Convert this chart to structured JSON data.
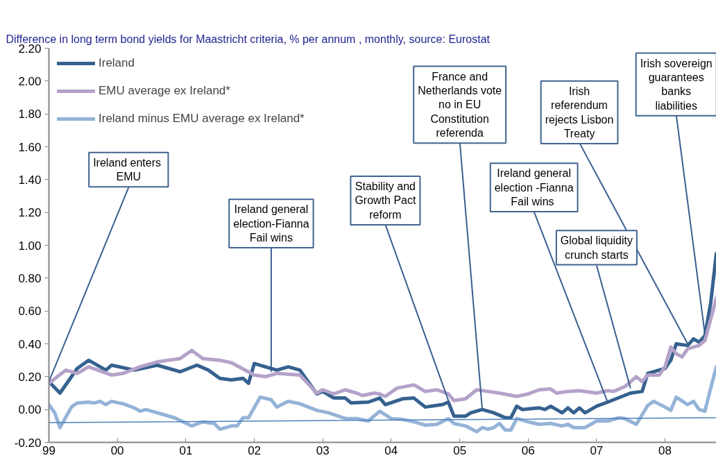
{
  "chart_data": {
    "type": "line",
    "title": "Difference in  long term bond yields for Maastricht criteria, % per annum , monthly,   source: Eurostat",
    "series": [
      {
        "name": "Ireland",
        "color": "#35618f",
        "x": [
          "1999-01",
          "1999-03",
          "1999-06",
          "1999-08",
          "1999-11",
          "1999-12",
          "2000-04",
          "2000-08",
          "2000-12",
          "2001-03",
          "2001-05",
          "2001-07",
          "2001-09",
          "2001-11",
          "2001-12",
          "2002-01",
          "2002-03",
          "2002-05",
          "2002-07",
          "2002-09",
          "2002-12",
          "2003-01",
          "2003-03",
          "2003-05",
          "2003-06",
          "2003-09",
          "2003-11",
          "2003-12",
          "2004-03",
          "2004-05",
          "2004-07",
          "2004-10",
          "2004-11",
          "2004-12",
          "2005-02",
          "2005-03",
          "2005-05",
          "2005-07",
          "2005-09",
          "2005-10",
          "2005-11",
          "2005-12",
          "2006-03",
          "2006-04",
          "2006-05",
          "2006-07",
          "2006-08",
          "2006-09",
          "2006-10",
          "2006-11",
          "2007-01",
          "2007-03",
          "2007-07",
          "2007-09",
          "2007-10",
          "2007-12",
          "2008-01",
          "2008-02",
          "2008-03",
          "2008-05",
          "2008-06",
          "2008-07",
          "2008-08",
          "2008-09",
          "2008-10"
        ],
        "values": [
          0.17,
          0.1,
          0.25,
          0.3,
          0.24,
          0.27,
          0.24,
          0.27,
          0.23,
          0.27,
          0.24,
          0.19,
          0.18,
          0.19,
          0.16,
          0.28,
          0.26,
          0.24,
          0.26,
          0.24,
          0.095,
          0.11,
          0.07,
          0.07,
          0.04,
          0.045,
          0.07,
          0.03,
          0.065,
          0.07,
          0.015,
          0.03,
          0.045,
          -0.04,
          -0.04,
          -0.02,
          0.0,
          -0.02,
          -0.05,
          -0.05,
          0.02,
          0.0,
          0.01,
          0.0,
          0.02,
          -0.02,
          0.01,
          -0.02,
          0.01,
          -0.02,
          0.02,
          0.045,
          0.1,
          0.11,
          0.22,
          0.24,
          0.25,
          0.3,
          0.4,
          0.39,
          0.43,
          0.41,
          0.45,
          0.65,
          0.95
        ]
      },
      {
        "name": "EMU average ex Ireland*",
        "color": "#b4a2c9",
        "x": [
          "1999-01",
          "1999-04",
          "1999-06",
          "1999-08",
          "1999-12",
          "2000-02",
          "2000-05",
          "2000-08",
          "2000-12",
          "2001-02",
          "2001-04",
          "2001-07",
          "2001-09",
          "2002-01",
          "2002-03",
          "2002-05",
          "2002-09",
          "2002-12",
          "2003-01",
          "2003-03",
          "2003-05",
          "2003-07",
          "2003-08",
          "2003-10",
          "2003-11",
          "2003-12",
          "2004-02",
          "2004-05",
          "2004-07",
          "2004-09",
          "2004-11",
          "2004-12",
          "2005-02",
          "2005-04",
          "2005-06",
          "2005-08",
          "2005-11",
          "2006-01",
          "2006-03",
          "2006-05",
          "2006-06",
          "2006-08",
          "2006-10",
          "2007-01",
          "2007-03",
          "2007-04",
          "2007-06",
          "2007-08",
          "2007-09",
          "2007-10",
          "2007-12",
          "2008-01",
          "2008-02",
          "2008-03",
          "2008-04",
          "2008-05",
          "2008-07",
          "2008-08",
          "2008-09",
          "2008-10"
        ],
        "values": [
          0.16,
          0.24,
          0.22,
          0.26,
          0.21,
          0.22,
          0.26,
          0.29,
          0.31,
          0.36,
          0.31,
          0.3,
          0.285,
          0.21,
          0.2,
          0.22,
          0.21,
          0.1,
          0.12,
          0.095,
          0.12,
          0.1,
          0.085,
          0.1,
          0.095,
          0.08,
          0.13,
          0.15,
          0.11,
          0.12,
          0.095,
          0.055,
          0.065,
          0.12,
          0.11,
          0.1,
          0.08,
          0.095,
          0.12,
          0.125,
          0.1,
          0.11,
          0.115,
          0.1,
          0.115,
          0.11,
          0.14,
          0.2,
          0.17,
          0.21,
          0.21,
          0.26,
          0.38,
          0.34,
          0.32,
          0.37,
          0.39,
          0.42,
          0.55,
          0.68
        ]
      },
      {
        "name": "Ireland minus EMU average ex Ireland*",
        "color": "#95b3d7",
        "x": [
          "1999-01",
          "1999-02",
          "1999-03",
          "1999-05",
          "1999-06",
          "1999-08",
          "1999-09",
          "1999-10",
          "1999-11",
          "1999-12",
          "2000-02",
          "2000-04",
          "2000-05",
          "2000-06",
          "2000-11",
          "2001-02",
          "2001-04",
          "2001-06",
          "2001-07",
          "2001-09",
          "2001-10",
          "2001-11",
          "2001-12",
          "2002-02",
          "2002-04",
          "2002-05",
          "2002-07",
          "2002-09",
          "2002-12",
          "2003-02",
          "2003-05",
          "2003-07",
          "2003-09",
          "2003-11",
          "2004-01",
          "2004-03",
          "2004-05",
          "2004-07",
          "2004-09",
          "2004-11",
          "2004-12",
          "2005-02",
          "2005-04",
          "2005-05",
          "2005-06",
          "2005-07",
          "2005-08",
          "2005-09",
          "2005-10",
          "2005-11",
          "2006-01",
          "2006-03",
          "2006-05",
          "2006-07",
          "2006-08",
          "2006-09",
          "2006-11",
          "2007-01",
          "2007-03",
          "2007-05",
          "2007-06",
          "2007-08",
          "2007-10",
          "2007-11",
          "2008-01",
          "2008-02",
          "2008-03",
          "2008-05",
          "2008-06",
          "2008-07",
          "2008-08",
          "2008-09",
          "2008-10"
        ],
        "values": [
          0.03,
          -0.02,
          -0.11,
          0.015,
          0.04,
          0.045,
          0.04,
          0.05,
          0.03,
          0.05,
          0.035,
          0.01,
          -0.01,
          0.0,
          -0.05,
          -0.1,
          -0.075,
          -0.085,
          -0.12,
          -0.1,
          -0.1,
          -0.05,
          -0.05,
          0.075,
          0.06,
          0.015,
          0.05,
          0.035,
          -0.005,
          -0.02,
          -0.055,
          -0.055,
          -0.07,
          -0.01,
          -0.055,
          -0.06,
          -0.075,
          -0.095,
          -0.09,
          -0.055,
          -0.085,
          -0.1,
          -0.135,
          -0.11,
          -0.12,
          -0.11,
          -0.085,
          -0.125,
          -0.125,
          -0.055,
          -0.075,
          -0.09,
          -0.085,
          -0.1,
          -0.09,
          -0.11,
          -0.11,
          -0.07,
          -0.07,
          -0.05,
          -0.055,
          -0.09,
          0.025,
          0.05,
          0.015,
          -0.005,
          0.075,
          0.03,
          0.05,
          0.0,
          -0.01,
          0.13,
          0.26
        ]
      },
      {
        "type": "line",
        "color": "#4f81bd",
        "x": [
          "1999-01",
          "2008-10"
        ],
        "values": [
          -0.08,
          -0.05
        ]
      }
    ],
    "annotations": [
      {
        "text": "Ireland  enters EMU",
        "x": "1999-01",
        "y": 0.17
      },
      {
        "text": "Ireland general election-Fianna Fail wins",
        "x": "2002-04",
        "y": 0.23
      },
      {
        "text": "Stability and Growth Pact reform",
        "x": "2004-12",
        "y": -0.04
      },
      {
        "text": "France and Netherlands vote no in EU Constitution referenda",
        "x": "2005-05",
        "y": 0.0
      },
      {
        "text": "Irish referendum rejects Lisbon Treaty",
        "x": "2008-05",
        "y": 0.4
      },
      {
        "text": "Ireland general election -Fianna Fail  wins",
        "x": "2007-03",
        "y": 0.045
      },
      {
        "text": "Global liquidity crunch starts",
        "x": "2007-07",
        "y": 0.13
      },
      {
        "text": "Irish sovereign guarantees banks liabilities",
        "x": "2008-08",
        "y": 0.46
      }
    ],
    "xlim": [
      "1999-01",
      "2008-10"
    ],
    "xticks": [
      {
        "value": "1999-01",
        "label": "99"
      },
      {
        "value": "2000-01",
        "label": "00"
      },
      {
        "value": "2001-01",
        "label": "01"
      },
      {
        "value": "2002-01",
        "label": "02"
      },
      {
        "value": "2003-01",
        "label": "03"
      },
      {
        "value": "2004-01",
        "label": "04"
      },
      {
        "value": "2005-01",
        "label": "05"
      },
      {
        "value": "2006-01",
        "label": "06"
      },
      {
        "value": "2007-01",
        "label": "07"
      },
      {
        "value": "2008-01",
        "label": "08"
      }
    ],
    "ylim": [
      -0.2,
      2.2
    ],
    "yticks": [
      {
        "value": -0.2,
        "label": "-0.20"
      },
      {
        "value": 0.0,
        "label": "0.00"
      },
      {
        "value": 0.2,
        "label": "0.20"
      },
      {
        "value": 0.4,
        "label": "0.40"
      },
      {
        "value": 0.6,
        "label": "0.60"
      },
      {
        "value": 0.8,
        "label": "0.80"
      },
      {
        "value": 1.0,
        "label": "1.00"
      },
      {
        "value": 1.2,
        "label": "1.20"
      },
      {
        "value": 1.4,
        "label": "1.40"
      },
      {
        "value": 1.6,
        "label": "1.60"
      },
      {
        "value": 1.8,
        "label": "1.80"
      },
      {
        "value": 2.0,
        "label": "2.00"
      },
      {
        "value": 2.2,
        "label": "2.20"
      }
    ],
    "grid": false,
    "legend": "top left",
    "marker": "none"
  }
}
